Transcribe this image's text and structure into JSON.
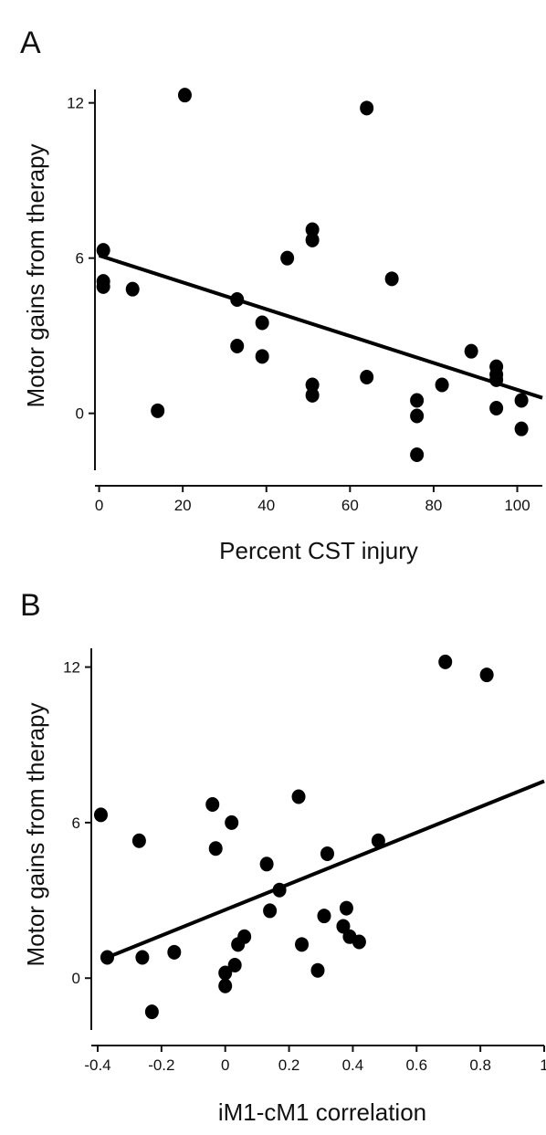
{
  "chart_data": [
    {
      "type": "scatter",
      "panel": "A",
      "xlabel": "Percent CST injury",
      "ylabel": "Motor gains from therapy",
      "xticks": [
        0,
        20,
        40,
        60,
        80,
        100
      ],
      "yticks": [
        0,
        6,
        12
      ],
      "xlim": [
        -1,
        106
      ],
      "ylim": [
        -2.2,
        12.8
      ],
      "points": [
        {
          "x": 1,
          "y": 6.3
        },
        {
          "x": 1,
          "y": 5.1
        },
        {
          "x": 1,
          "y": 4.9
        },
        {
          "x": 8,
          "y": 4.8
        },
        {
          "x": 14,
          "y": 0.1
        },
        {
          "x": 20.5,
          "y": 12.3
        },
        {
          "x": 33,
          "y": 4.4
        },
        {
          "x": 33,
          "y": 2.6
        },
        {
          "x": 39,
          "y": 3.5
        },
        {
          "x": 39,
          "y": 2.2
        },
        {
          "x": 45,
          "y": 6.0
        },
        {
          "x": 51,
          "y": 7.1
        },
        {
          "x": 51,
          "y": 6.7
        },
        {
          "x": 51,
          "y": 1.1
        },
        {
          "x": 51,
          "y": 0.7
        },
        {
          "x": 64,
          "y": 11.8
        },
        {
          "x": 64,
          "y": 1.4
        },
        {
          "x": 70,
          "y": 5.2
        },
        {
          "x": 76,
          "y": 0.5
        },
        {
          "x": 76,
          "y": -0.1
        },
        {
          "x": 76,
          "y": -1.6
        },
        {
          "x": 82,
          "y": 1.1
        },
        {
          "x": 89,
          "y": 2.4
        },
        {
          "x": 95,
          "y": 1.8
        },
        {
          "x": 95,
          "y": 1.5
        },
        {
          "x": 95,
          "y": 1.3
        },
        {
          "x": 95,
          "y": 0.2
        },
        {
          "x": 101,
          "y": 0.5
        },
        {
          "x": 101,
          "y": -0.6
        }
      ],
      "fit": {
        "x": [
          0,
          106
        ],
        "y": [
          6.1,
          0.6
        ]
      }
    },
    {
      "type": "scatter",
      "panel": "B",
      "xlabel": "iM1-cM1 correlation",
      "ylabel": "Motor gains from therapy",
      "xticks": [
        "-0.4",
        "-0.2",
        "0",
        "0.2",
        "0.4",
        "0.6",
        "0.8",
        "1"
      ],
      "xtick_values": [
        -0.4,
        -0.2,
        0,
        0.2,
        0.4,
        0.6,
        0.8,
        1
      ],
      "yticks": [
        0,
        6,
        12
      ],
      "xlim": [
        -0.42,
        1.0
      ],
      "ylim": [
        -2.0,
        12.9
      ],
      "points": [
        {
          "x": -0.39,
          "y": 6.3
        },
        {
          "x": -0.37,
          "y": 0.8
        },
        {
          "x": -0.27,
          "y": 5.3
        },
        {
          "x": -0.26,
          "y": 0.8
        },
        {
          "x": -0.23,
          "y": -1.3
        },
        {
          "x": -0.16,
          "y": 1.0
        },
        {
          "x": -0.04,
          "y": 6.7
        },
        {
          "x": -0.03,
          "y": 5.0
        },
        {
          "x": 0.0,
          "y": 0.2
        },
        {
          "x": 0.0,
          "y": -0.3
        },
        {
          "x": 0.02,
          "y": 6.0
        },
        {
          "x": 0.03,
          "y": 0.5
        },
        {
          "x": 0.04,
          "y": 1.3
        },
        {
          "x": 0.06,
          "y": 1.6
        },
        {
          "x": 0.13,
          "y": 4.4
        },
        {
          "x": 0.14,
          "y": 2.6
        },
        {
          "x": 0.17,
          "y": 3.4
        },
        {
          "x": 0.23,
          "y": 7.0
        },
        {
          "x": 0.24,
          "y": 1.3
        },
        {
          "x": 0.29,
          "y": 0.3
        },
        {
          "x": 0.31,
          "y": 2.4
        },
        {
          "x": 0.32,
          "y": 4.8
        },
        {
          "x": 0.37,
          "y": 2.0
        },
        {
          "x": 0.38,
          "y": 2.7
        },
        {
          "x": 0.39,
          "y": 1.6
        },
        {
          "x": 0.42,
          "y": 1.4
        },
        {
          "x": 0.48,
          "y": 5.3
        },
        {
          "x": 0.69,
          "y": 12.2
        },
        {
          "x": 0.82,
          "y": 11.7
        }
      ],
      "fit": {
        "x": [
          -0.37,
          1.0
        ],
        "y": [
          0.8,
          7.6
        ]
      }
    }
  ]
}
